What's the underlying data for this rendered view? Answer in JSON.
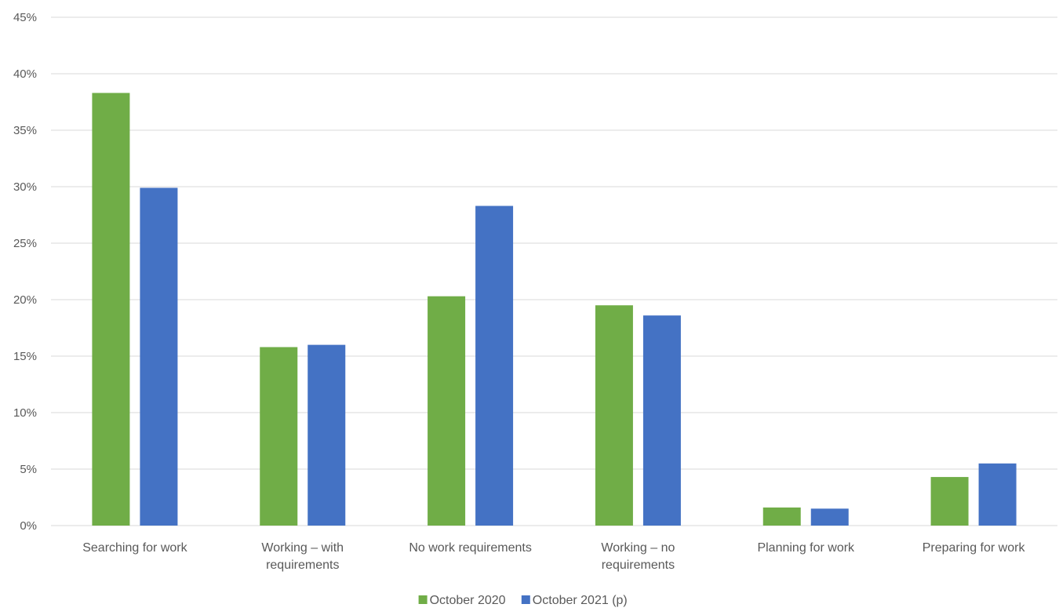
{
  "chart_data": {
    "type": "bar",
    "title": "",
    "xlabel": "",
    "ylabel": "",
    "ylim": [
      0,
      45
    ],
    "y_ticks": [
      "0%",
      "5%",
      "10%",
      "15%",
      "20%",
      "25%",
      "30%",
      "35%",
      "40%",
      "45%"
    ],
    "y_tick_values": [
      0,
      5,
      10,
      15,
      20,
      25,
      30,
      35,
      40,
      45
    ],
    "categories": [
      [
        "Searching for work"
      ],
      [
        "Working – with",
        "requirements"
      ],
      [
        "No work requirements"
      ],
      [
        "Working – no",
        "requirements"
      ],
      [
        "Planning for work"
      ],
      [
        "Preparing for work"
      ]
    ],
    "series": [
      {
        "name": "October 2020",
        "color": "#70AD47",
        "values": [
          38.3,
          15.8,
          20.3,
          19.5,
          1.6,
          4.3
        ]
      },
      {
        "name": "October 2021 (p)",
        "color": "#4472C4",
        "values": [
          29.9,
          16.0,
          28.3,
          18.6,
          1.5,
          5.5
        ]
      }
    ],
    "grid": true,
    "legend_position": "bottom-center",
    "gridline_color": "#D9D9D9"
  }
}
